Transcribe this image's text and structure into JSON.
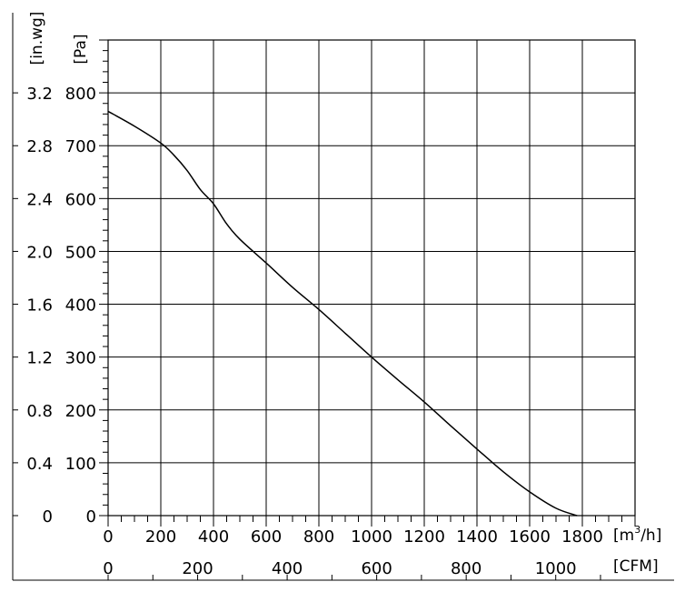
{
  "chart_data": {
    "type": "line",
    "title": "",
    "x_unit_label": "[m",
    "x_unit_sup": "3",
    "x_unit_suffix": "/h]",
    "x2_unit_label": "[CFM]",
    "y_unit_label": "[Pa]",
    "y2_unit_label": "[in.wg]",
    "xlim": [
      0,
      2000
    ],
    "ylim": [
      0,
      900
    ],
    "grid": true,
    "x_ticks": [
      "0",
      "200",
      "400",
      "600",
      "800",
      "1000",
      "1200",
      "1400",
      "1600",
      "1800"
    ],
    "x_tick_values": [
      0,
      200,
      400,
      600,
      800,
      1000,
      1200,
      1400,
      1600,
      1800
    ],
    "x2_ticks": [
      "0",
      "200",
      "400",
      "600",
      "800",
      "1000"
    ],
    "x2_tick_values": [
      0,
      200,
      400,
      600,
      800,
      1000
    ],
    "y_ticks": [
      "0",
      "100",
      "200",
      "300",
      "400",
      "500",
      "600",
      "700",
      "800"
    ],
    "y_tick_values": [
      0,
      100,
      200,
      300,
      400,
      500,
      600,
      700,
      800
    ],
    "y2_ticks": [
      "0",
      "0.4",
      "0.8",
      "1.2",
      "1.6",
      "2.0",
      "2.4",
      "2.8",
      "3.2"
    ],
    "series": [
      {
        "x": [
          0,
          100,
          200,
          250,
          300,
          350,
          400,
          450,
          500,
          600,
          700,
          800,
          900,
          1000,
          1100,
          1200,
          1300,
          1400,
          1500,
          1600,
          1700,
          1780
        ],
        "y": [
          765,
          737,
          705,
          682,
          653,
          617,
          590,
          552,
          523,
          478,
          432,
          390,
          345,
          300,
          257,
          215,
          170,
          126,
          83,
          45,
          14,
          0
        ]
      }
    ]
  }
}
